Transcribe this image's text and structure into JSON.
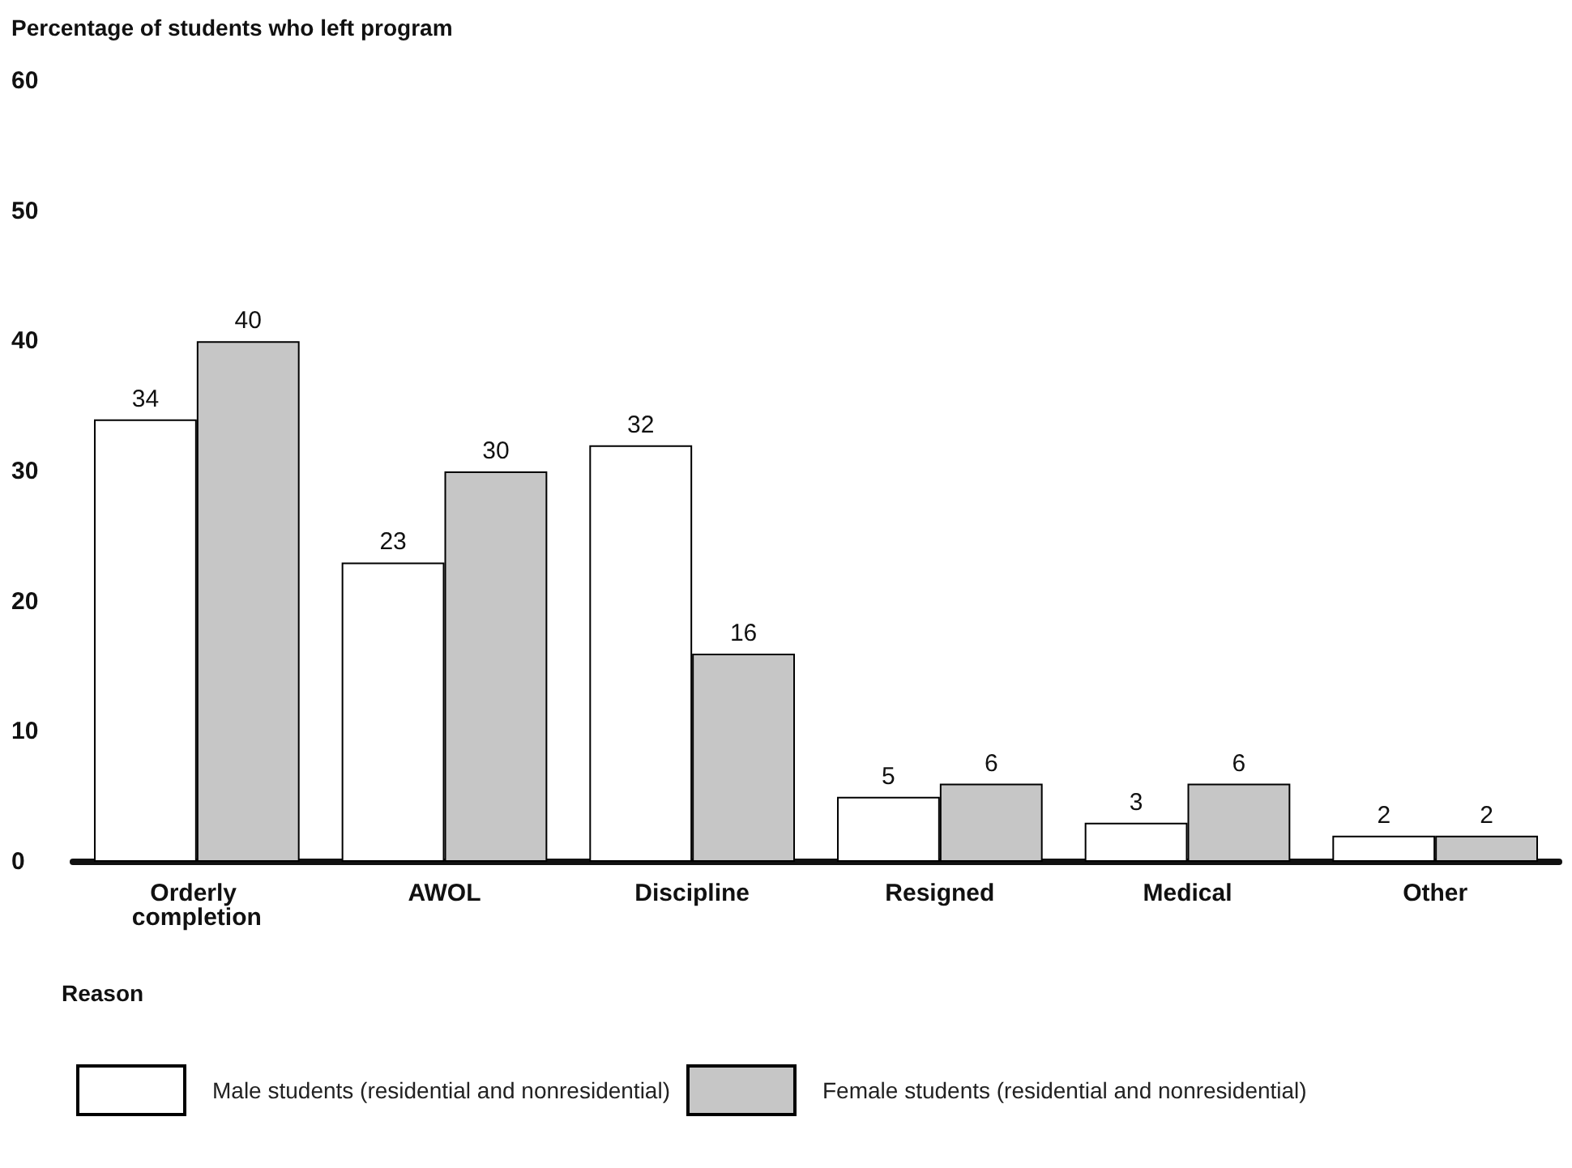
{
  "chart_data": {
    "type": "bar",
    "ylabel": "Percentage of students who left program",
    "xlabel": "Reason",
    "categories": [
      "Orderly completion",
      "AWOL",
      "Discipline",
      "Resigned",
      "Medical",
      "Other"
    ],
    "series": [
      {
        "name": "Male students (residential and nonresidential)",
        "color": "#ffffff",
        "values": [
          34,
          23,
          32,
          5,
          3,
          2
        ]
      },
      {
        "name": "Female students (residential and nonresidential)",
        "color": "#c6c6c6",
        "values": [
          40,
          30,
          16,
          6,
          6,
          2
        ]
      }
    ],
    "ylim": [
      0,
      60
    ],
    "yticks": [
      0,
      10,
      20,
      30,
      40,
      50,
      60
    ],
    "grid": false,
    "legend": "bottom left",
    "data_labels": true
  }
}
